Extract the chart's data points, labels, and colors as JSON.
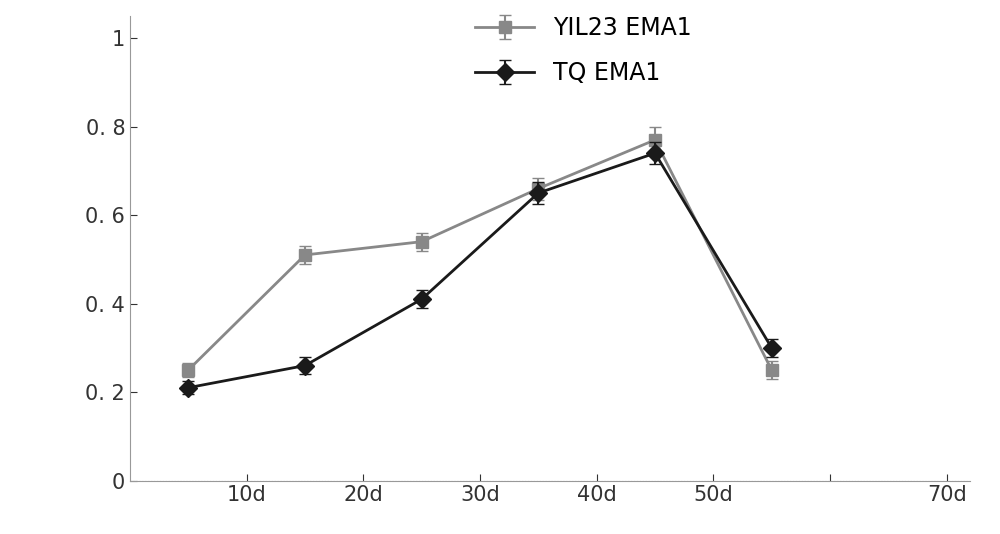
{
  "x_data": [
    5,
    15,
    25,
    35,
    45,
    55
  ],
  "tq_y": [
    0.21,
    0.26,
    0.41,
    0.65,
    0.74,
    0.3
  ],
  "tq_yerr": [
    0.015,
    0.02,
    0.02,
    0.025,
    0.025,
    0.02
  ],
  "yil23_y": [
    0.25,
    0.51,
    0.54,
    0.66,
    0.77,
    0.25
  ],
  "yil23_yerr": [
    0.015,
    0.02,
    0.02,
    0.025,
    0.03,
    0.02
  ],
  "tq_color": "#1a1a1a",
  "yil23_color": "#888888",
  "tq_label": "TQ EMA1",
  "yil23_label": "YIL23 EMA1",
  "ylim": [
    0,
    1.05
  ],
  "yticks": [
    0,
    0.2,
    0.4,
    0.6,
    0.8,
    1.0
  ],
  "ytick_labels": [
    "0",
    "0. 2",
    "0. 4",
    "0. 6",
    "0. 8",
    "1"
  ],
  "xtick_positions": [
    10,
    20,
    30,
    40,
    50,
    60,
    70
  ],
  "xtick_labels": [
    "10d",
    "20d",
    "30d",
    "40d",
    "50d",
    "",
    "70d"
  ],
  "xlim": [
    0,
    72
  ],
  "background_color": "#ffffff",
  "legend_fontsize": 17,
  "tick_fontsize": 15,
  "linewidth": 2.0,
  "markersize": 9,
  "capsize": 4,
  "elinewidth": 1.5
}
